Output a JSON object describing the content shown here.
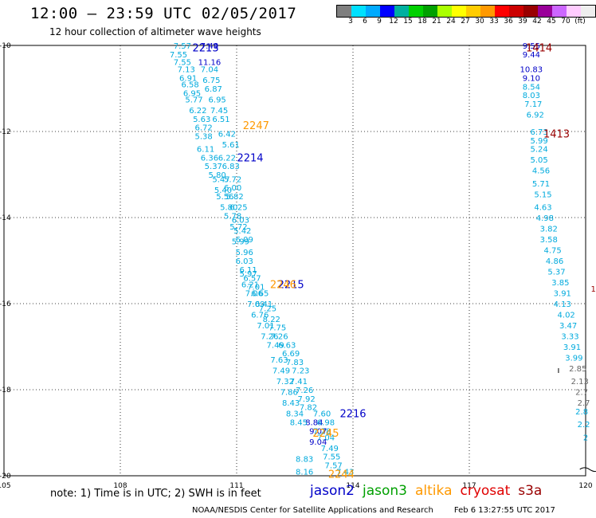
{
  "title": "12:00 — 23:59 UTC 02/05/2017",
  "subtitle": "12 hour collection of altimeter wave heights",
  "colorbar": {
    "colors": [
      "#7f7f7f",
      "#00e0ff",
      "#00aaff",
      "#0000ff",
      "#00b0a0",
      "#00d000",
      "#00a000",
      "#aaff00",
      "#ffff00",
      "#ffcc00",
      "#ff9900",
      "#ff0000",
      "#cc0000",
      "#990000",
      "#990099",
      "#cc66ff",
      "#ffccff",
      "#eeeeee"
    ],
    "labels": [
      "3",
      "6",
      "9",
      "12",
      "15",
      "18",
      "21",
      "24",
      "27",
      "30",
      "33",
      "36",
      "39",
      "42",
      "45",
      "70",
      "(ft)"
    ]
  },
  "note": "note: 1) Time is in UTC; 2) SWH is in feet",
  "legend": [
    {
      "name": "jason2",
      "color": "#0000c8"
    },
    {
      "name": "jason3",
      "color": "#00a000"
    },
    {
      "name": "altika",
      "color": "#ff9900"
    },
    {
      "name": "cryosat",
      "color": "#e00000"
    },
    {
      "name": "s3a",
      "color": "#990000"
    }
  ],
  "footer": {
    "agency": "NOAA/NESDIS Center for Satellite Applications and Research",
    "timestamp": "Feb  6 13:27:55 UTC 2017"
  },
  "chart_data": {
    "type": "scatter",
    "xlim": [
      105,
      120
    ],
    "ylim": [
      -20,
      -10
    ],
    "xticks": [
      "105",
      "108",
      "111",
      "114",
      "117",
      "120"
    ],
    "yticks": [
      "-10",
      "-12",
      "-14",
      "-16",
      "-18",
      "-20"
    ],
    "grid": "dotted",
    "track_labels": [
      {
        "text": "2213",
        "x": 110.2,
        "y": -10.05,
        "color": "#0000c8"
      },
      {
        "text": "2247",
        "x": 111.5,
        "y": -11.85,
        "color": "#ff9900"
      },
      {
        "text": "2214",
        "x": 111.35,
        "y": -12.6,
        "color": "#0000c8"
      },
      {
        "text": "2215",
        "x": 112.4,
        "y": -15.55,
        "color": "#0000c8"
      },
      {
        "text": "2246",
        "x": 112.2,
        "y": -15.55,
        "color": "#ff9900"
      },
      {
        "text": "2216",
        "x": 114.0,
        "y": -18.55,
        "color": "#0000c8"
      },
      {
        "text": "2245",
        "x": 113.3,
        "y": -19.0,
        "color": "#ff9900"
      },
      {
        "text": "2244",
        "x": 113.7,
        "y": -19.95,
        "color": "#ff9900"
      },
      {
        "text": "1414",
        "x": 118.8,
        "y": -10.05,
        "color": "#990000"
      },
      {
        "text": "1413",
        "x": 119.25,
        "y": -12.05,
        "color": "#990000"
      }
    ],
    "series": [
      {
        "name": "jason2",
        "color": "#0000c8",
        "points": [
          {
            "x": 110.3,
            "y": -10.0,
            "v": "7.48"
          },
          {
            "x": 110.3,
            "y": -10.38,
            "v": "11.16"
          },
          {
            "x": 113.0,
            "y": -18.75,
            "v": "8.84"
          },
          {
            "x": 113.1,
            "y": -18.95,
            "v": "9.07"
          },
          {
            "x": 113.1,
            "y": -19.2,
            "v": "9.04"
          },
          {
            "x": 118.6,
            "y": -10.0,
            "v": "9.55"
          },
          {
            "x": 118.6,
            "y": -10.2,
            "v": "9.44"
          },
          {
            "x": 118.6,
            "y": -10.55,
            "v": "10.83"
          },
          {
            "x": 118.6,
            "y": -10.75,
            "v": "9.10"
          }
        ]
      },
      {
        "name": "swh",
        "color": "#00aadd",
        "points": [
          {
            "x": 109.6,
            "y": -10.0,
            "v": "7.57"
          },
          {
            "x": 109.5,
            "y": -10.2,
            "v": "7.55"
          },
          {
            "x": 109.6,
            "y": -10.38,
            "v": "7.55"
          },
          {
            "x": 110.3,
            "y": -10.55,
            "v": "7.04"
          },
          {
            "x": 109.7,
            "y": -10.55,
            "v": "7.13"
          },
          {
            "x": 109.75,
            "y": -10.75,
            "v": "6.91"
          },
          {
            "x": 110.35,
            "y": -10.8,
            "v": "6.75"
          },
          {
            "x": 109.8,
            "y": -10.9,
            "v": "6.58"
          },
          {
            "x": 110.4,
            "y": -11.0,
            "v": "6.87"
          },
          {
            "x": 109.85,
            "y": -11.1,
            "v": "6.95"
          },
          {
            "x": 110.5,
            "y": -11.25,
            "v": "6.95"
          },
          {
            "x": 109.9,
            "y": -11.25,
            "v": "5.77"
          },
          {
            "x": 110.0,
            "y": -11.5,
            "v": "6.22"
          },
          {
            "x": 110.55,
            "y": -11.5,
            "v": "7.45"
          },
          {
            "x": 110.1,
            "y": -11.7,
            "v": "5.63"
          },
          {
            "x": 110.6,
            "y": -11.7,
            "v": "6.51"
          },
          {
            "x": 110.15,
            "y": -11.9,
            "v": "6.72"
          },
          {
            "x": 110.75,
            "y": -12.05,
            "v": "6.42"
          },
          {
            "x": 110.15,
            "y": -12.1,
            "v": "5.38"
          },
          {
            "x": 110.85,
            "y": -12.3,
            "v": "5.61"
          },
          {
            "x": 110.2,
            "y": -12.4,
            "v": "6.11"
          },
          {
            "x": 110.3,
            "y": -12.6,
            "v": "6.36"
          },
          {
            "x": 110.75,
            "y": -12.6,
            "v": "6.22"
          },
          {
            "x": 110.4,
            "y": -12.8,
            "v": "5.37"
          },
          {
            "x": 110.85,
            "y": -12.8,
            "v": "6.83"
          },
          {
            "x": 110.5,
            "y": -13.0,
            "v": "5.80"
          },
          {
            "x": 110.9,
            "y": -13.1,
            "v": "5.72"
          },
          {
            "x": 110.6,
            "y": -13.1,
            "v": "5.47"
          },
          {
            "x": 110.9,
            "y": -13.3,
            "v": "6.00"
          },
          {
            "x": 110.65,
            "y": -13.35,
            "v": "5.40"
          },
          {
            "x": 110.7,
            "y": -13.5,
            "v": "5.56"
          },
          {
            "x": 110.95,
            "y": -13.5,
            "v": "5.82"
          },
          {
            "x": 110.8,
            "y": -13.75,
            "v": "5.80"
          },
          {
            "x": 111.05,
            "y": -13.75,
            "v": "6.25"
          },
          {
            "x": 110.9,
            "y": -13.95,
            "v": "5.78"
          },
          {
            "x": 111.1,
            "y": -14.05,
            "v": "6.03"
          },
          {
            "x": 111.05,
            "y": -14.2,
            "v": "5.72"
          },
          {
            "x": 111.15,
            "y": -14.3,
            "v": "5.42"
          },
          {
            "x": 111.2,
            "y": -14.5,
            "v": "6.09"
          },
          {
            "x": 111.1,
            "y": -14.55,
            "v": "5.99"
          },
          {
            "x": 111.2,
            "y": -14.8,
            "v": "5.96"
          },
          {
            "x": 111.2,
            "y": -15.0,
            "v": "6.03"
          },
          {
            "x": 111.3,
            "y": -15.2,
            "v": "6.11"
          },
          {
            "x": 111.3,
            "y": -15.3,
            "v": "5.97"
          },
          {
            "x": 111.4,
            "y": -15.4,
            "v": "6.57"
          },
          {
            "x": 111.35,
            "y": -15.55,
            "v": "6.21"
          },
          {
            "x": 111.5,
            "y": -15.6,
            "v": "7.01"
          },
          {
            "x": 111.6,
            "y": -15.75,
            "v": "6.65"
          },
          {
            "x": 111.45,
            "y": -15.75,
            "v": "7.06"
          },
          {
            "x": 111.5,
            "y": -16.0,
            "v": "7.09"
          },
          {
            "x": 111.7,
            "y": -16.0,
            "v": "6.41"
          },
          {
            "x": 111.8,
            "y": -16.1,
            "v": "7.25"
          },
          {
            "x": 111.6,
            "y": -16.25,
            "v": "6.76"
          },
          {
            "x": 111.9,
            "y": -16.35,
            "v": "8.22"
          },
          {
            "x": 111.75,
            "y": -16.5,
            "v": "7.01"
          },
          {
            "x": 112.05,
            "y": -16.55,
            "v": "7.75"
          },
          {
            "x": 111.85,
            "y": -16.75,
            "v": "7.26"
          },
          {
            "x": 112.1,
            "y": -16.75,
            "v": "7.26"
          },
          {
            "x": 112.0,
            "y": -16.95,
            "v": "7.49"
          },
          {
            "x": 112.3,
            "y": -16.95,
            "v": "6.63"
          },
          {
            "x": 112.4,
            "y": -17.15,
            "v": "6.69"
          },
          {
            "x": 112.1,
            "y": -17.3,
            "v": "7.63"
          },
          {
            "x": 112.5,
            "y": -17.35,
            "v": "7.83"
          },
          {
            "x": 112.15,
            "y": -17.55,
            "v": "7.49"
          },
          {
            "x": 112.65,
            "y": -17.55,
            "v": "7.23"
          },
          {
            "x": 112.25,
            "y": -17.8,
            "v": "7.32"
          },
          {
            "x": 112.6,
            "y": -17.8,
            "v": "7.41"
          },
          {
            "x": 112.75,
            "y": -18.0,
            "v": "7.26"
          },
          {
            "x": 112.35,
            "y": -18.05,
            "v": "7.86"
          },
          {
            "x": 112.8,
            "y": -18.2,
            "v": "7.92"
          },
          {
            "x": 112.4,
            "y": -18.3,
            "v": "8.43"
          },
          {
            "x": 112.85,
            "y": -18.4,
            "v": "7.82"
          },
          {
            "x": 112.5,
            "y": -18.55,
            "v": "8.34"
          },
          {
            "x": 113.2,
            "y": -18.55,
            "v": "7.60"
          },
          {
            "x": 112.6,
            "y": -18.75,
            "v": "8.45"
          },
          {
            "x": 113.3,
            "y": -18.75,
            "v": "6.98"
          },
          {
            "x": 113.2,
            "y": -18.95,
            "v": "7.28"
          },
          {
            "x": 113.3,
            "y": -19.1,
            "v": "7.04"
          },
          {
            "x": 113.4,
            "y": -19.35,
            "v": "7.49"
          },
          {
            "x": 113.45,
            "y": -19.55,
            "v": "7.55"
          },
          {
            "x": 112.75,
            "y": -19.6,
            "v": "8.83"
          },
          {
            "x": 113.5,
            "y": -19.75,
            "v": "7.57"
          },
          {
            "x": 112.75,
            "y": -19.9,
            "v": "8.16"
          },
          {
            "x": 113.8,
            "y": -19.9,
            "v": "7.43"
          },
          {
            "x": 118.6,
            "y": -10.95,
            "v": "8.54"
          },
          {
            "x": 118.6,
            "y": -11.15,
            "v": "8.03"
          },
          {
            "x": 118.65,
            "y": -11.35,
            "v": "7.17"
          },
          {
            "x": 118.7,
            "y": -11.6,
            "v": "6.92"
          },
          {
            "x": 118.8,
            "y": -12.0,
            "v": "6.73"
          },
          {
            "x": 118.8,
            "y": -12.2,
            "v": "5.99"
          },
          {
            "x": 118.8,
            "y": -12.4,
            "v": "5.24"
          },
          {
            "x": 118.8,
            "y": -12.65,
            "v": "5.05"
          },
          {
            "x": 118.85,
            "y": -12.9,
            "v": "4.56"
          },
          {
            "x": 118.85,
            "y": -13.2,
            "v": "5.71"
          },
          {
            "x": 118.9,
            "y": -13.45,
            "v": "5.15"
          },
          {
            "x": 118.9,
            "y": -13.75,
            "v": "4.63"
          },
          {
            "x": 118.95,
            "y": -14.0,
            "v": "4.98"
          },
          {
            "x": 119.05,
            "y": -14.25,
            "v": "3.82"
          },
          {
            "x": 119.05,
            "y": -14.5,
            "v": "3.58"
          },
          {
            "x": 119.15,
            "y": -14.75,
            "v": "4.75"
          },
          {
            "x": 119.2,
            "y": -15.0,
            "v": "4.86"
          },
          {
            "x": 119.25,
            "y": -15.25,
            "v": "5.37"
          },
          {
            "x": 119.35,
            "y": -15.5,
            "v": "3.85"
          },
          {
            "x": 119.4,
            "y": -15.75,
            "v": "3.91"
          },
          {
            "x": 119.4,
            "y": -16.0,
            "v": "4.13"
          },
          {
            "x": 119.5,
            "y": -16.25,
            "v": "4.02"
          },
          {
            "x": 119.55,
            "y": -16.5,
            "v": "3.47"
          },
          {
            "x": 119.6,
            "y": -16.75,
            "v": "3.33"
          },
          {
            "x": 119.65,
            "y": -17.0,
            "v": "3.91"
          },
          {
            "x": 119.7,
            "y": -17.25,
            "v": "3.99"
          },
          {
            "x": 119.9,
            "y": -18.5,
            "v": "2.8"
          },
          {
            "x": 119.95,
            "y": -18.8,
            "v": "2.2"
          },
          {
            "x": 120.0,
            "y": -19.1,
            "v": "2"
          }
        ]
      },
      {
        "name": "s3a",
        "color": "#990000",
        "points": [
          {
            "x": 120.2,
            "y": -15.65,
            "v": "1"
          }
        ]
      },
      {
        "name": "grey",
        "color": "#666666",
        "points": [
          {
            "x": 119.8,
            "y": -17.5,
            "v": "2.85"
          },
          {
            "x": 119.85,
            "y": -17.8,
            "v": "2.13"
          },
          {
            "x": 119.9,
            "y": -18.05,
            "v": "2.7"
          },
          {
            "x": 119.95,
            "y": -18.3,
            "v": "2.7"
          }
        ]
      }
    ]
  }
}
